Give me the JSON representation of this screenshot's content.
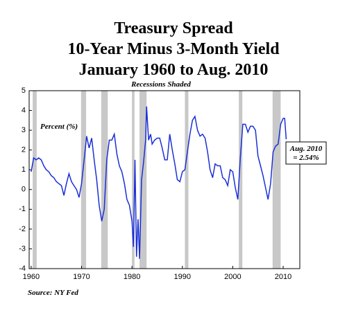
{
  "chart_data": {
    "type": "line",
    "title": [
      "Treasury Spread",
      "10-Year Minus 3-Month Yield",
      "January 1960 to Aug. 2010"
    ],
    "subtitle": "Recessions Shaded",
    "y_label": "Percent (%)",
    "annotation": [
      "Aug. 2010",
      "= 2.54%"
    ],
    "source": "Source: NY Fed",
    "xlim": [
      1959.6,
      2013.3
    ],
    "xticks": [
      1960,
      1970,
      1980,
      1990,
      2000,
      2010
    ],
    "ylim": [
      -4,
      5
    ],
    "yticks": [
      -4,
      -3,
      -2,
      -1,
      0,
      1,
      2,
      3,
      4,
      5
    ],
    "recession_color": "#c8c8c8",
    "recessions": [
      [
        1960.3,
        1961.1
      ],
      [
        1969.9,
        1970.9
      ],
      [
        1973.9,
        1975.2
      ],
      [
        1980.0,
        1980.5
      ],
      [
        1981.5,
        1982.9
      ],
      [
        1990.5,
        1991.2
      ],
      [
        2001.2,
        2001.9
      ],
      [
        2007.9,
        2009.5
      ]
    ],
    "x": [
      1960.0,
      1960.5,
      1961.0,
      1961.5,
      1962.0,
      1962.5,
      1963.0,
      1963.5,
      1964.0,
      1964.5,
      1965.0,
      1965.5,
      1966.0,
      1966.5,
      1967.0,
      1967.5,
      1968.0,
      1968.5,
      1969.0,
      1969.5,
      1970.0,
      1970.5,
      1971.0,
      1971.5,
      1972.0,
      1972.5,
      1973.0,
      1973.5,
      1974.0,
      1974.5,
      1975.0,
      1975.5,
      1976.0,
      1976.5,
      1977.0,
      1977.5,
      1978.0,
      1978.5,
      1979.0,
      1979.5,
      1980.0,
      1980.3,
      1980.6,
      1980.9,
      1981.2,
      1981.5,
      1981.9,
      1982.3,
      1982.7,
      1982.9,
      1983.3,
      1983.7,
      1984.0,
      1984.5,
      1985.0,
      1985.5,
      1986.0,
      1986.5,
      1987.0,
      1987.5,
      1988.0,
      1988.5,
      1989.0,
      1989.5,
      1990.0,
      1990.5,
      1991.0,
      1991.5,
      1992.0,
      1992.5,
      1993.0,
      1993.5,
      1994.0,
      1994.5,
      1995.0,
      1995.5,
      1996.0,
      1996.5,
      1997.0,
      1997.5,
      1998.0,
      1998.5,
      1999.0,
      1999.5,
      2000.0,
      2000.5,
      2001.0,
      2001.5,
      2002.0,
      2002.5,
      2003.0,
      2003.5,
      2004.0,
      2004.5,
      2005.0,
      2005.5,
      2006.0,
      2006.5,
      2007.0,
      2007.5,
      2008.0,
      2008.5,
      2009.0,
      2009.5,
      2010.0,
      2010.3,
      2010.6
    ],
    "series": [
      {
        "name": "Spread",
        "color": "#1a2fd6",
        "values": [
          0.9,
          1.6,
          1.5,
          1.6,
          1.5,
          1.2,
          1.0,
          0.9,
          0.7,
          0.6,
          0.4,
          0.3,
          0.2,
          -0.3,
          0.3,
          0.8,
          0.4,
          0.2,
          0.0,
          -0.4,
          0.3,
          1.5,
          2.7,
          2.1,
          2.6,
          1.5,
          0.5,
          -0.8,
          -1.6,
          -1.0,
          1.5,
          2.5,
          2.5,
          2.8,
          1.8,
          1.2,
          0.9,
          0.3,
          -0.5,
          -0.8,
          -1.6,
          -2.9,
          1.5,
          -3.4,
          -1.5,
          -3.5,
          0.5,
          1.4,
          2.5,
          4.2,
          2.5,
          2.8,
          2.3,
          2.5,
          2.6,
          2.6,
          2.1,
          1.5,
          1.5,
          2.8,
          2.0,
          1.3,
          0.5,
          0.4,
          0.9,
          1.0,
          1.9,
          2.8,
          3.5,
          3.7,
          3.0,
          2.7,
          2.8,
          2.6,
          1.9,
          1.0,
          0.6,
          1.3,
          1.2,
          1.2,
          0.6,
          0.5,
          0.2,
          1.0,
          0.9,
          0.1,
          -0.5,
          1.6,
          3.3,
          3.3,
          2.9,
          3.2,
          3.2,
          3.0,
          1.7,
          1.2,
          0.7,
          0.1,
          -0.5,
          0.3,
          1.9,
          2.2,
          2.3,
          3.3,
          3.6,
          3.6,
          2.54
        ]
      }
    ]
  }
}
